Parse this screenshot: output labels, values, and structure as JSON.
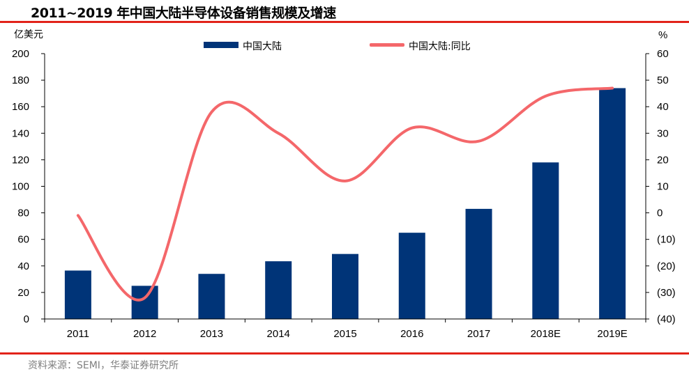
{
  "title": "2011~2019 年中国大陆半导体设备销售规模及增速",
  "source": "资料来源：SEMI，华泰证券研究所",
  "chart_data": {
    "type": "bar+line",
    "categories": [
      "2011",
      "2012",
      "2013",
      "2014",
      "2015",
      "2016",
      "2017",
      "2018E",
      "2019E"
    ],
    "series": [
      {
        "name": "中国大陆",
        "type": "bar",
        "axis": "left",
        "color": "#003478",
        "values": [
          36.5,
          25,
          34,
          43.5,
          49,
          65,
          83,
          118,
          174
        ]
      },
      {
        "name": "中国大陆:同比",
        "type": "line",
        "axis": "right",
        "color": "#f4676a",
        "values": [
          -1,
          -32,
          38,
          30,
          12,
          32,
          27,
          44,
          47
        ]
      }
    ],
    "ylabel_left": "亿美元",
    "ylabel_right": "%",
    "ylim_left": [
      0,
      200
    ],
    "ylim_right": [
      -40,
      60
    ],
    "yticks_left": [
      "0",
      "20",
      "40",
      "60",
      "80",
      "100",
      "120",
      "140",
      "160",
      "180",
      "200"
    ],
    "yticks_right": [
      "(40)",
      "(30)",
      "(20)",
      "(10)",
      "0",
      "10",
      "20",
      "30",
      "40",
      "50",
      "60"
    ],
    "grid": false,
    "legend": "top-center"
  }
}
